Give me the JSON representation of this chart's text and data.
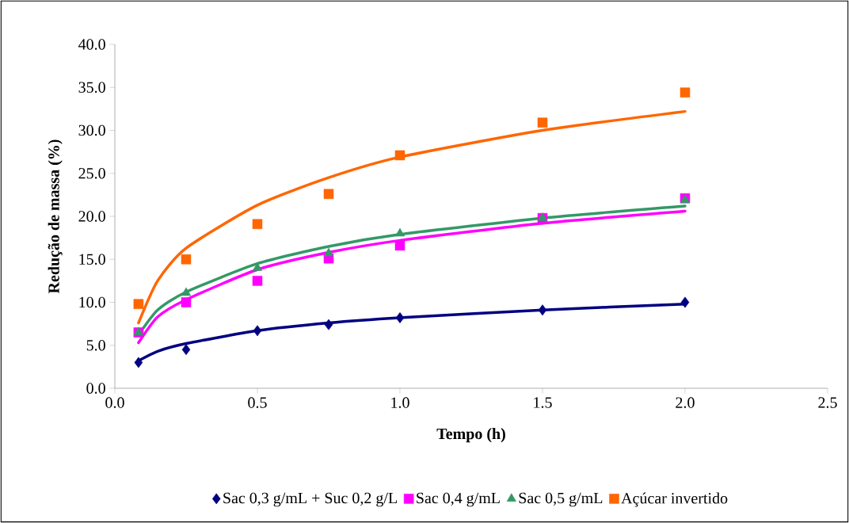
{
  "chart_data": {
    "type": "scatter",
    "xlabel": "Tempo (h)",
    "ylabel": "Redução de massa (%)",
    "xlim": [
      0,
      2.5
    ],
    "ylim": [
      0,
      40
    ],
    "xticks": [
      {
        "value": 0,
        "label": "0.0"
      },
      {
        "value": 0.5,
        "label": "0.5"
      },
      {
        "value": 1,
        "label": "1.0"
      },
      {
        "value": 1.5,
        "label": "1.5"
      },
      {
        "value": 2,
        "label": "2.0"
      },
      {
        "value": 2.5,
        "label": "2.5"
      }
    ],
    "yticks": [
      {
        "value": 0,
        "label": "0.0"
      },
      {
        "value": 5,
        "label": "5.0"
      },
      {
        "value": 10,
        "label": "10.0"
      },
      {
        "value": 15,
        "label": "15.0"
      },
      {
        "value": 20,
        "label": "20.0"
      },
      {
        "value": 25,
        "label": "25.0"
      },
      {
        "value": 30,
        "label": "30.0"
      },
      {
        "value": 35,
        "label": "35.0"
      },
      {
        "value": 40,
        "label": "40.0"
      }
    ],
    "x": [
      0.083,
      0.25,
      0.5,
      0.75,
      1.0,
      1.5,
      2.0
    ],
    "grid": false,
    "legend": "bottom",
    "series": [
      {
        "type": "line",
        "color": "#000080",
        "marker": "none",
        "x": [
          0.083,
          0.15,
          0.25,
          0.5,
          0.75,
          1.0,
          1.5,
          2.0
        ],
        "values": [
          3.2,
          4.3,
          5.2,
          6.7,
          7.6,
          8.2,
          9.1,
          9.8
        ]
      },
      {
        "type": "line",
        "color": "#ff00ff",
        "marker": "none",
        "x": [
          0.083,
          0.15,
          0.25,
          0.5,
          0.75,
          1.0,
          1.5,
          2.0
        ],
        "values": [
          5.3,
          8.3,
          10.3,
          13.8,
          15.8,
          17.2,
          19.2,
          20.6
        ]
      },
      {
        "type": "line",
        "color": "#339966",
        "marker": "none",
        "x": [
          0.083,
          0.15,
          0.25,
          0.5,
          0.75,
          1.0,
          1.5,
          2.0
        ],
        "values": [
          6.2,
          9.1,
          11.2,
          14.5,
          16.5,
          17.9,
          19.8,
          21.2
        ]
      },
      {
        "type": "line",
        "color": "#ff6600",
        "marker": "none",
        "x": [
          0.083,
          0.15,
          0.25,
          0.5,
          0.75,
          1.0,
          1.5,
          2.0
        ],
        "values": [
          7.6,
          12.5,
          16.3,
          21.3,
          24.5,
          26.9,
          30.0,
          32.2
        ]
      },
      {
        "name": "Sac 0,3 g/mL + Suc 0,2 g/L",
        "marker": "diamond",
        "color": "#000080",
        "values": [
          3.0,
          4.5,
          6.7,
          7.4,
          8.2,
          9.1,
          10.0
        ]
      },
      {
        "name": "Sac 0,4 g/mL",
        "marker": "square",
        "color": "#ff00ff",
        "values": [
          6.5,
          10.0,
          12.5,
          15.1,
          16.6,
          19.8,
          22.1
        ]
      },
      {
        "name": "Sac 0,5 g/mL",
        "marker": "triangle",
        "color": "#339966",
        "values": [
          6.5,
          11.1,
          14.0,
          15.7,
          18.0,
          19.8,
          21.9
        ]
      },
      {
        "name": "Açúcar invertido",
        "marker": "square",
        "color": "#ff6600",
        "values": [
          9.8,
          15.0,
          19.1,
          22.6,
          27.1,
          30.9,
          34.4
        ]
      }
    ]
  }
}
